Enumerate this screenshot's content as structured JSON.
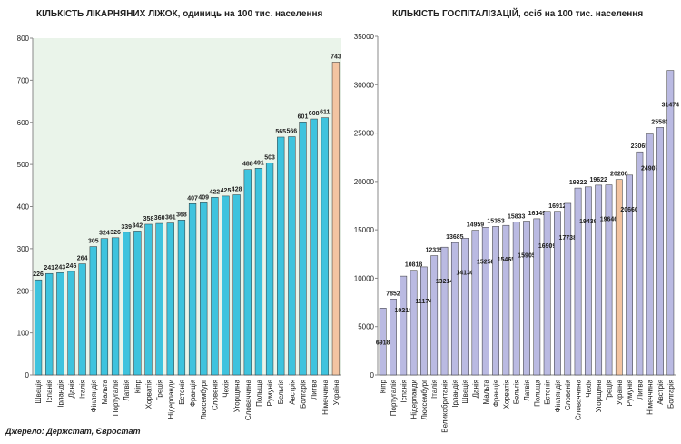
{
  "chart_data": [
    {
      "type": "bar",
      "title": "КІЛЬКІСТЬ  ЛІКАРНЯНИХ  ЛІЖОК, одиниць на 100 тис. населення",
      "categories": [
        "Швеція",
        "Іспанія",
        "Ірландія",
        "Данія",
        "Італія",
        "Фінляндія",
        "Мальта",
        "Португалія",
        "Латвія",
        "Кіпр",
        "Хорватія",
        "Греція",
        "Нідерланди",
        "Естонія",
        "Франція",
        "Люксембург",
        "Словенія",
        "Чехія",
        "Угорщина",
        "Словаччина",
        "Польща",
        "Румунія",
        "Бельгія",
        "Австрія",
        "Болгарія",
        "Литва",
        "Німеччина",
        "Україна"
      ],
      "values": [
        226,
        241,
        243,
        246,
        264,
        305,
        324,
        326,
        339,
        342,
        358,
        360,
        361,
        368,
        407,
        409,
        422,
        425,
        428,
        488,
        491,
        503,
        565,
        566,
        601,
        608,
        611,
        743
      ],
      "colors": [
        "#3ec3de",
        "#3ec3de",
        "#3ec3de",
        "#3ec3de",
        "#3ec3de",
        "#3ec3de",
        "#3ec3de",
        "#3ec3de",
        "#3ec3de",
        "#3ec3de",
        "#3ec3de",
        "#3ec3de",
        "#3ec3de",
        "#3ec3de",
        "#3ec3de",
        "#3ec3de",
        "#3ec3de",
        "#3ec3de",
        "#3ec3de",
        "#3ec3de",
        "#3ec3de",
        "#3ec3de",
        "#3ec3de",
        "#3ec3de",
        "#3ec3de",
        "#3ec3de",
        "#3ec3de",
        "#f3c4a2"
      ],
      "ylim": [
        0,
        800
      ],
      "yticks": [
        0,
        100,
        200,
        300,
        400,
        500,
        600,
        700,
        800
      ],
      "grid": false
    },
    {
      "type": "bar",
      "title": "КІЛЬКІСТЬ  ГОСПІТАЛІЗАЦІЙ,  осіб на 100 тис. населення",
      "categories": [
        "Кіпр",
        "Португалія",
        "Іспанія",
        "Нідерланди",
        "Люксембург",
        "Італія",
        "Великобританія",
        "Ірландія",
        "Швеція",
        "Данія",
        "Мальта",
        "Франція",
        "Хорватія",
        "Бельгія",
        "Латвія",
        "Польща",
        "Естонія",
        "Фінляндія",
        "Словенія",
        "Словаччина",
        "Чехія",
        "Угорщина",
        "Греція",
        "Україна",
        "Румунія",
        "Литва",
        "Німеччина",
        "Австрія",
        "Болгарія"
      ],
      "values": [
        6918,
        7852,
        10218,
        10818,
        11174,
        12335,
        13214,
        13685,
        14130,
        14959,
        15258,
        15353,
        15465,
        15833,
        15905,
        16149,
        16909,
        16912,
        17738,
        19322,
        19439,
        19622,
        19646,
        20200,
        20660,
        23065,
        24907,
        25580,
        31474
      ],
      "colors": [
        "#babae2",
        "#babae2",
        "#babae2",
        "#babae2",
        "#babae2",
        "#babae2",
        "#babae2",
        "#babae2",
        "#babae2",
        "#babae2",
        "#babae2",
        "#babae2",
        "#babae2",
        "#babae2",
        "#babae2",
        "#babae2",
        "#babae2",
        "#babae2",
        "#babae2",
        "#babae2",
        "#babae2",
        "#babae2",
        "#babae2",
        "#f3c4a2",
        "#babae2",
        "#babae2",
        "#babae2",
        "#babae2",
        "#babae2"
      ],
      "ylim": [
        0,
        35000
      ],
      "yticks": [
        0,
        5000,
        10000,
        15000,
        20000,
        25000,
        30000,
        35000
      ],
      "grid": false
    }
  ],
  "source": "Джерело: Держстат, Євростат"
}
